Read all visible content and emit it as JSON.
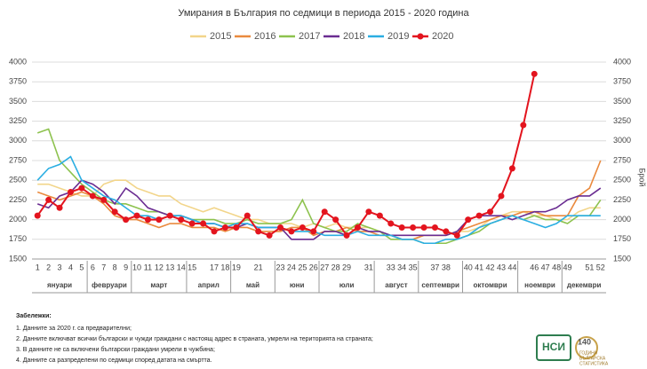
{
  "chart_data": {
    "type": "line",
    "title": "Умирания в България по седмици в периода 2015 - 2020 година",
    "y_label": "Брой",
    "x": [
      1,
      2,
      3,
      4,
      5,
      6,
      7,
      8,
      9,
      10,
      11,
      12,
      13,
      14,
      15,
      16,
      17,
      18,
      19,
      20,
      21,
      22,
      23,
      24,
      25,
      26,
      27,
      28,
      29,
      30,
      31,
      32,
      33,
      34,
      35,
      36,
      37,
      38,
      39,
      40,
      41,
      42,
      43,
      44,
      45,
      46,
      47,
      48,
      49,
      50,
      51,
      52
    ],
    "xlim": [
      0.5,
      52.5
    ],
    "xticks": [
      1,
      2,
      3,
      4,
      5,
      6,
      7,
      8,
      9,
      10,
      11,
      12,
      13,
      14,
      15,
      17,
      18,
      19,
      21,
      23,
      24,
      25,
      26,
      27,
      28,
      29,
      31,
      33,
      34,
      35,
      37,
      38,
      40,
      41,
      42,
      43,
      44,
      46,
      47,
      48,
      49,
      51,
      52
    ],
    "ylim": [
      1500,
      4000
    ],
    "yticks": [
      1500,
      1750,
      2000,
      2250,
      2500,
      2750,
      3000,
      3250,
      3500,
      3750,
      4000
    ],
    "grid": true,
    "months": [
      "януари",
      "февруари",
      "март",
      "април",
      "май",
      "юни",
      "юли",
      "август",
      "септември",
      "октомври",
      "ноември",
      "декември"
    ],
    "series": [
      {
        "name": "2015",
        "color": "#f2d58a",
        "values": [
          2450,
          2450,
          2400,
          2350,
          2300,
          2300,
          2450,
          2500,
          2500,
          2400,
          2350,
          2300,
          2300,
          2200,
          2150,
          2100,
          2150,
          2100,
          2050,
          2000,
          2000,
          1950,
          1950,
          1950,
          1900,
          1950,
          1900,
          1950,
          1900,
          1900,
          1900,
          1850,
          1800,
          1750,
          1750,
          1800,
          1800,
          1800,
          1850,
          1850,
          1900,
          2000,
          2050,
          2100,
          2100,
          2050,
          2050,
          2000,
          2000,
          2100,
          2150,
          2150
        ]
      },
      {
        "name": "2016",
        "color": "#ea8a3e",
        "values": [
          2350,
          2300,
          2250,
          2300,
          2350,
          2300,
          2200,
          2050,
          2000,
          2000,
          1950,
          1900,
          1950,
          1950,
          1900,
          1900,
          1900,
          1850,
          1900,
          1900,
          1850,
          1850,
          1850,
          1900,
          1900,
          1800,
          1850,
          1850,
          1900,
          1850,
          1850,
          1800,
          1800,
          1750,
          1750,
          1800,
          1800,
          1800,
          1850,
          1900,
          1950,
          2000,
          2050,
          2050,
          2100,
          2100,
          2050,
          2050,
          2050,
          2300,
          2400,
          2750
        ]
      },
      {
        "name": "2017",
        "color": "#8dc24e",
        "values": [
          3100,
          3150,
          2750,
          2600,
          2450,
          2350,
          2250,
          2200,
          2200,
          2150,
          2100,
          2100,
          2050,
          2050,
          2000,
          2000,
          2000,
          1950,
          1950,
          2000,
          1950,
          1950,
          1950,
          2000,
          2250,
          1950,
          1900,
          1850,
          1850,
          1950,
          1900,
          1850,
          1750,
          1750,
          1750,
          1700,
          1700,
          1700,
          1750,
          1800,
          1850,
          1950,
          2000,
          2050,
          2000,
          2050,
          2000,
          2000,
          1950,
          2050,
          2050,
          2250
        ]
      },
      {
        "name": "2018",
        "color": "#6a2c91",
        "values": [
          2200,
          2150,
          2300,
          2350,
          2500,
          2450,
          2350,
          2200,
          2400,
          2300,
          2150,
          2100,
          2050,
          2050,
          2000,
          1950,
          1950,
          1900,
          1900,
          1950,
          1900,
          1900,
          1900,
          1750,
          1750,
          1750,
          1850,
          1850,
          1800,
          1900,
          1850,
          1850,
          1800,
          1800,
          1800,
          1800,
          1800,
          1800,
          1850,
          2000,
          2050,
          2050,
          2050,
          2000,
          2050,
          2100,
          2100,
          2150,
          2250,
          2300,
          2300,
          2400
        ]
      },
      {
        "name": "2019",
        "color": "#2aaee2",
        "values": [
          2500,
          2650,
          2700,
          2800,
          2500,
          2400,
          2300,
          2250,
          2150,
          2050,
          2050,
          2000,
          2050,
          2050,
          2000,
          1950,
          1950,
          1900,
          1950,
          1950,
          1900,
          1900,
          1900,
          1850,
          1850,
          1850,
          1800,
          1800,
          1800,
          1850,
          1800,
          1800,
          1800,
          1750,
          1750,
          1700,
          1700,
          1750,
          1750,
          1800,
          1900,
          1950,
          2000,
          2050,
          2000,
          1950,
          1900,
          1950,
          2050,
          2050,
          2050,
          2050
        ]
      },
      {
        "name": "2020",
        "color": "#e3141e",
        "marker": "circle",
        "values": [
          2050,
          2250,
          2150,
          2350,
          2400,
          2300,
          2250,
          2100,
          2000,
          2050,
          2000,
          2000,
          2050,
          2000,
          1950,
          1950,
          1850,
          1900,
          1900,
          2050,
          1850,
          1800,
          1900,
          1850,
          1900,
          1850,
          2100,
          2000,
          1800,
          1900,
          2100,
          2050,
          1950,
          1900,
          1900,
          1900,
          1900,
          1850,
          1800,
          2000,
          2050,
          2100,
          2300,
          2650,
          3200,
          3850,
          null,
          null,
          null,
          null,
          null,
          null
        ]
      }
    ]
  },
  "notes": {
    "title": "Забележки:",
    "items": [
      "1. Данните за 2020 г. са предварителни;",
      "2. Данните включват всички български и чужди граждани с настоящ адрес в страната, умрели на територията на страната;",
      "3. В данните не са включени български граждани умрели в чужбина;",
      "4. Данните са разпределени по седмици според датата на смъртта."
    ]
  },
  "logo": {
    "mark": "НСИ",
    "lines": [
      "140",
      "ГОДИНИ",
      "БЪЛГАРСКА",
      "СТАТИСТИКА"
    ]
  }
}
